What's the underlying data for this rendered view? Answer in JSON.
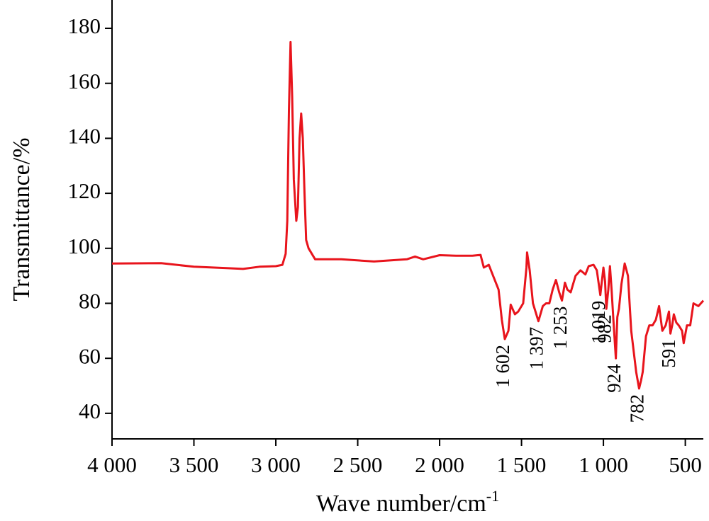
{
  "chart_data": {
    "type": "line",
    "xlabel": {
      "text": "Wave number/cm",
      "sup": "-1"
    },
    "ylabel": "Transmittance/%",
    "xlim": [
      4000,
      390
    ],
    "ylim": [
      30.7,
      190.3
    ],
    "xticks": [
      {
        "value": 4000,
        "label": "4 000"
      },
      {
        "value": 3500,
        "label": "3 500"
      },
      {
        "value": 3000,
        "label": "3 000"
      },
      {
        "value": 2500,
        "label": "2 500"
      },
      {
        "value": 2000,
        "label": "2 000"
      },
      {
        "value": 1500,
        "label": "1 500"
      },
      {
        "value": 1000,
        "label": "1 000"
      },
      500
    ],
    "yticks": [
      40,
      60,
      80,
      100,
      120,
      140,
      160,
      180
    ],
    "grid": false,
    "series": [
      {
        "name": null,
        "color": "#e8141c",
        "x": [
          4000,
          3700,
          3500,
          3300,
          3200,
          3100,
          3000,
          2960,
          2940,
          2930,
          2920,
          2910,
          2900,
          2890,
          2875,
          2865,
          2855,
          2845,
          2835,
          2825,
          2815,
          2800,
          2760,
          2600,
          2400,
          2200,
          2150,
          2100,
          2000,
          1900,
          1800,
          1750,
          1730,
          1700,
          1680,
          1640,
          1620,
          1602,
          1580,
          1566,
          1540,
          1520,
          1490,
          1470,
          1466,
          1450,
          1430,
          1397,
          1370,
          1350,
          1330,
          1310,
          1290,
          1270,
          1253,
          1235,
          1220,
          1200,
          1170,
          1140,
          1110,
          1090,
          1060,
          1040,
          1019,
          1000,
          990,
          982,
          970,
          960,
          950,
          940,
          924,
          915,
          905,
          890,
          870,
          850,
          830,
          800,
          782,
          770,
          760,
          740,
          720,
          700,
          680,
          660,
          640,
          620,
          600,
          591,
          580,
          570,
          555,
          540,
          520,
          510,
          490,
          470,
          450,
          420,
          390
        ],
        "values": [
          94.5,
          94.6,
          93.3,
          92.8,
          92.5,
          93.3,
          93.5,
          94,
          98,
          110,
          150,
          175,
          155,
          125,
          110,
          115,
          140,
          149,
          140,
          120,
          103,
          100,
          96,
          96,
          95.2,
          96,
          97,
          96,
          97.5,
          97.3,
          97.3,
          97.6,
          93,
          94,
          91,
          85,
          74,
          67,
          70,
          79.5,
          76,
          77,
          80,
          93,
          98.5,
          92,
          80,
          73.5,
          79,
          80,
          80,
          85,
          88.5,
          84,
          81,
          87.5,
          85,
          84,
          90,
          92,
          90.5,
          93.5,
          94,
          92,
          83,
          93,
          88,
          78,
          85,
          93.5,
          85,
          75,
          60,
          75,
          78,
          87,
          94.5,
          90,
          70,
          55,
          49,
          52,
          55,
          68,
          72,
          72,
          74,
          79,
          70,
          72,
          77,
          69,
          72,
          76,
          73,
          72,
          70,
          65.5,
          72,
          72,
          80,
          79,
          81
        ]
      }
    ],
    "annotations": [
      {
        "label": "1 602",
        "value": 1602
      },
      {
        "label": "1 397",
        "value": 1397
      },
      {
        "label": "1 253",
        "value": 1253
      },
      {
        "label": "1 019",
        "value": 1019
      },
      {
        "label": "982",
        "value": 982
      },
      {
        "label": "924",
        "value": 924
      },
      {
        "label": "782",
        "value": 782
      },
      {
        "label": "591",
        "value": 591
      }
    ]
  }
}
